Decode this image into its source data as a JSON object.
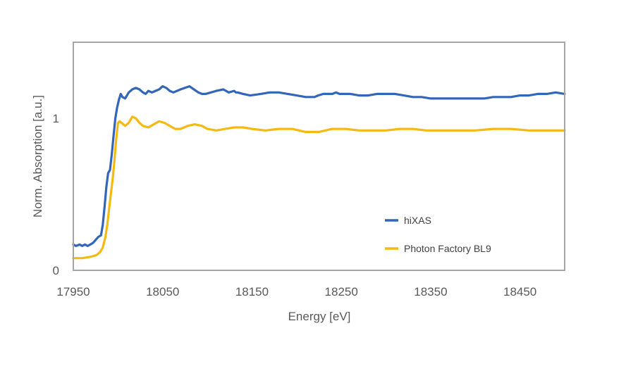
{
  "chart_data": {
    "type": "line",
    "title": "",
    "xlabel": "Energy [eV]",
    "ylabel": "Norm. Absorption [a.u.]",
    "xlim": [
      17950,
      18500
    ],
    "ylim": [
      0,
      1.5
    ],
    "x_ticks": [
      17950,
      18050,
      18150,
      18250,
      18350,
      18450
    ],
    "x_tick_labels": [
      "17950",
      "18050",
      "18150",
      "18250",
      "18350",
      "18450"
    ],
    "y_ticks": [
      0,
      1
    ],
    "y_tick_labels": [
      "0",
      "1"
    ],
    "grid": false,
    "legend_position": "bottom-right",
    "series": [
      {
        "name": "hiXAS",
        "color": "#3366b8",
        "x": [
          17950,
          17953,
          17957,
          17960,
          17963,
          17966,
          17969,
          17972,
          17975,
          17978,
          17981,
          17983,
          17985,
          17987,
          17989,
          17991,
          17993,
          17995,
          17997,
          17999,
          18001,
          18003,
          18005,
          18008,
          18012,
          18016,
          18020,
          18024,
          18028,
          18031,
          18034,
          18038,
          18042,
          18046,
          18050,
          18054,
          18058,
          18062,
          18066,
          18070,
          18075,
          18080,
          18085,
          18090,
          18094,
          18098,
          18104,
          18110,
          18118,
          18124,
          18130,
          18132,
          18134,
          18140,
          18148,
          18160,
          18170,
          18180,
          18190,
          18200,
          18210,
          18220,
          18224,
          18230,
          18240,
          18244,
          18248,
          18260,
          18270,
          18280,
          18290,
          18300,
          18310,
          18320,
          18330,
          18340,
          18350,
          18360,
          18370,
          18380,
          18390,
          18400,
          18410,
          18420,
          18430,
          18440,
          18450,
          18460,
          18470,
          18480,
          18490,
          18500
        ],
        "y": [
          0.17,
          0.16,
          0.17,
          0.16,
          0.17,
          0.16,
          0.17,
          0.18,
          0.2,
          0.22,
          0.23,
          0.3,
          0.42,
          0.55,
          0.64,
          0.66,
          0.76,
          0.88,
          1.0,
          1.07,
          1.12,
          1.16,
          1.14,
          1.13,
          1.17,
          1.19,
          1.2,
          1.19,
          1.17,
          1.16,
          1.18,
          1.17,
          1.18,
          1.19,
          1.21,
          1.2,
          1.18,
          1.17,
          1.18,
          1.19,
          1.2,
          1.21,
          1.19,
          1.17,
          1.16,
          1.16,
          1.17,
          1.18,
          1.19,
          1.17,
          1.18,
          1.17,
          1.17,
          1.16,
          1.15,
          1.16,
          1.17,
          1.17,
          1.16,
          1.15,
          1.14,
          1.14,
          1.15,
          1.16,
          1.16,
          1.17,
          1.16,
          1.16,
          1.15,
          1.15,
          1.16,
          1.16,
          1.16,
          1.15,
          1.14,
          1.14,
          1.13,
          1.13,
          1.13,
          1.13,
          1.13,
          1.13,
          1.13,
          1.14,
          1.14,
          1.14,
          1.15,
          1.15,
          1.16,
          1.16,
          1.17,
          1.16
        ]
      },
      {
        "name": "Photon Factory BL9",
        "color": "#f5b914",
        "x": [
          17950,
          17960,
          17970,
          17976,
          17980,
          17983,
          17986,
          17988,
          17990,
          17992,
          17994,
          17996,
          17998,
          18000,
          18002,
          18004,
          18008,
          18012,
          18016,
          18020,
          18024,
          18028,
          18034,
          18040,
          18046,
          18052,
          18058,
          18064,
          18070,
          18078,
          18086,
          18094,
          18100,
          18110,
          18120,
          18130,
          18140,
          18150,
          18165,
          18180,
          18195,
          18210,
          18225,
          18240,
          18255,
          18270,
          18285,
          18300,
          18315,
          18330,
          18345,
          18360,
          18380,
          18400,
          18420,
          18440,
          18460,
          18480,
          18500
        ],
        "y": [
          0.08,
          0.08,
          0.09,
          0.1,
          0.12,
          0.15,
          0.22,
          0.3,
          0.4,
          0.5,
          0.6,
          0.72,
          0.86,
          0.97,
          0.98,
          0.97,
          0.95,
          0.97,
          1.01,
          1.0,
          0.97,
          0.95,
          0.94,
          0.96,
          0.98,
          0.97,
          0.95,
          0.93,
          0.93,
          0.95,
          0.96,
          0.95,
          0.93,
          0.92,
          0.93,
          0.94,
          0.94,
          0.93,
          0.92,
          0.93,
          0.93,
          0.91,
          0.91,
          0.93,
          0.93,
          0.92,
          0.92,
          0.92,
          0.93,
          0.93,
          0.92,
          0.92,
          0.92,
          0.92,
          0.93,
          0.93,
          0.92,
          0.92,
          0.92
        ]
      }
    ]
  }
}
